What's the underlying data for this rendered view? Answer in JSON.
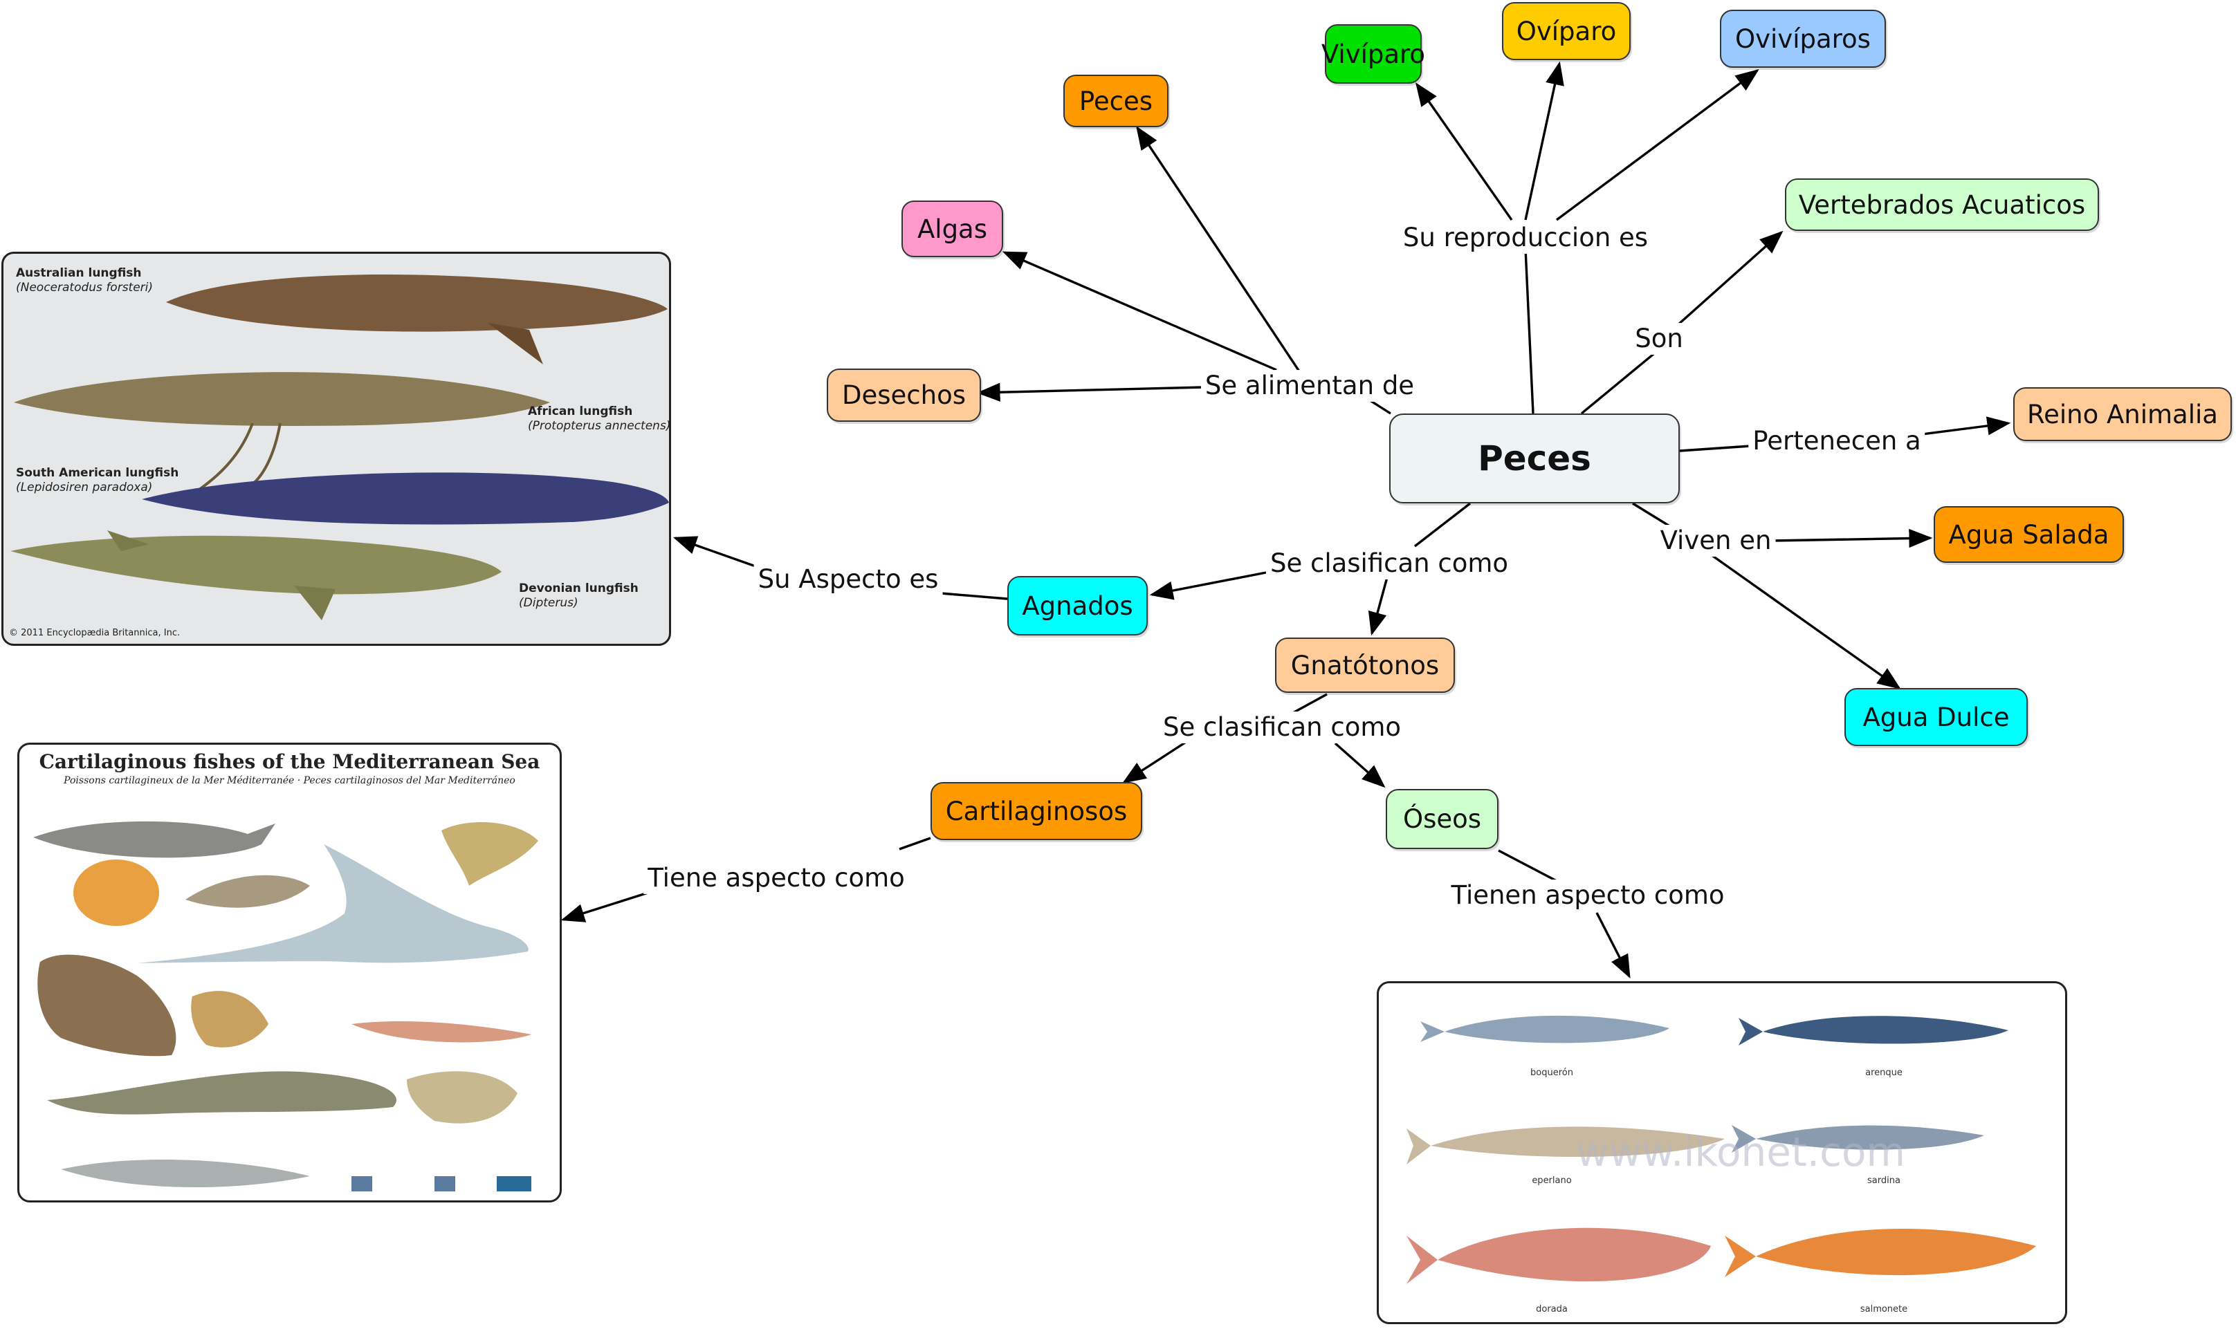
{
  "nodes": {
    "peces_center": {
      "label": "Peces",
      "color": "#eef3f5"
    },
    "vivíparo": {
      "label": "Vivíparo",
      "color": "#00e000"
    },
    "ovíparo": {
      "label": "Ovíparo",
      "color": "#ffcc00"
    },
    "ovivíparos": {
      "label": "Ovivíparos",
      "color": "#99c9ff"
    },
    "peces_food": {
      "label": "Peces",
      "color": "#ff9900"
    },
    "algas": {
      "label": "Algas",
      "color": "#ff99cc"
    },
    "desechos": {
      "label": "Desechos",
      "color": "#ffcc99"
    },
    "vertebrados": {
      "label": "Vertebrados Acuaticos",
      "color": "#ccffcc"
    },
    "reino": {
      "label": "Reino Animalia",
      "color": "#ffcc99"
    },
    "agua_salada": {
      "label": "Agua Salada",
      "color": "#ff9900"
    },
    "agua_dulce": {
      "label": "Agua Dulce",
      "color": "#00ffff"
    },
    "agnados": {
      "label": "Agnados",
      "color": "#00ffff"
    },
    "gnatotonos": {
      "label": "Gnatótonos",
      "color": "#ffcc99"
    },
    "cartilaginosos": {
      "label": "Cartilaginosos",
      "color": "#ff9900"
    },
    "oseos": {
      "label": "Óseos",
      "color": "#ccffcc"
    }
  },
  "edge_labels": {
    "reproduccion": "Su reproduccion es",
    "alimentan": "Se alimentan de",
    "son": "Son",
    "pertenecen": "Pertenecen a",
    "viven": "Viven en",
    "clasifican_1": "Se clasifican como",
    "clasifican_2": "Se clasifican como",
    "aspecto": "Su Aspecto es",
    "tiene_aspecto": "Tiene aspecto como",
    "tienen_aspecto": "Tienen aspecto como"
  },
  "lungfish_panel": {
    "items": [
      {
        "name": "Australian lungfish",
        "sci": "(Neoceratodus forsteri)"
      },
      {
        "name": "African lungfish",
        "sci": "(Protopterus annectens)"
      },
      {
        "name": "South American lungfish",
        "sci": "(Lepidosiren paradoxa)"
      },
      {
        "name": "Devonian lungfish",
        "sci": "(Dipterus)"
      }
    ],
    "copyright": "© 2011 Encyclopædia Britannica, Inc.",
    "colors": {
      "australian": "#7a5a3c",
      "african": "#8a7a55",
      "south_american": "#3a3f7a",
      "devonian": "#8c8c5a"
    }
  },
  "cartilaginous_panel": {
    "title": "Cartilaginous fishes of the Mediterranean Sea",
    "subtitle": "Poissons cartilagineux de la Mer Méditerranée · Peces cartilaginosos del Mar Mediterráneo"
  },
  "bony_panel": {
    "watermark": "www.ikonet.com",
    "fish": [
      {
        "name": "boquerón",
        "color": "#8fa3b8"
      },
      {
        "name": "arenque",
        "color": "#3d5a80"
      },
      {
        "name": "eperlano",
        "color": "#c8b8a0"
      },
      {
        "name": "sardina",
        "color": "#8a9bb0"
      },
      {
        "name": "dorada",
        "color": "#d98a7a"
      },
      {
        "name": "salmonete",
        "color": "#e8883a"
      }
    ]
  }
}
